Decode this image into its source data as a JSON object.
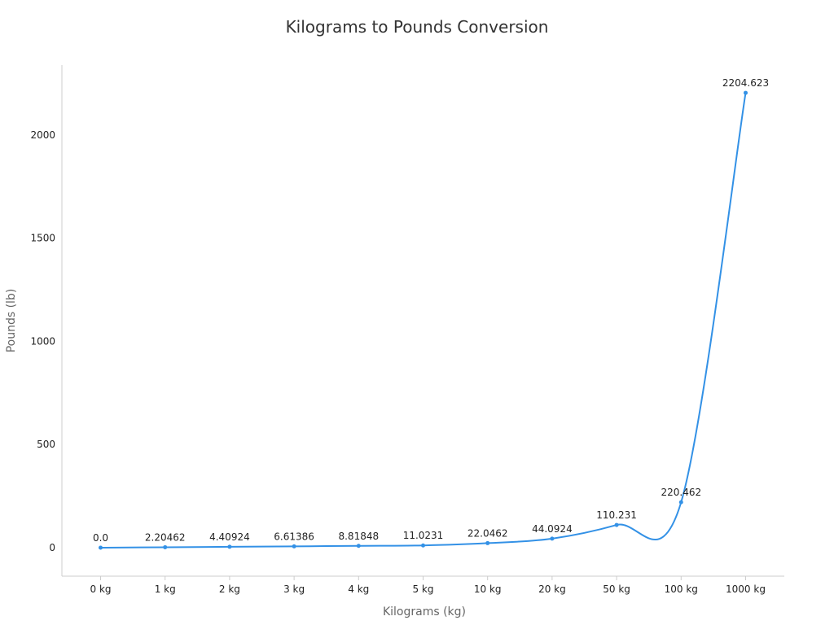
{
  "chart_data": {
    "type": "line",
    "title": "Kilograms to Pounds Conversion",
    "xlabel": "Kilograms (kg)",
    "ylabel": "Pounds (lb)",
    "categories": [
      "0 kg",
      "1 kg",
      "2 kg",
      "3 kg",
      "4 kg",
      "5 kg",
      "10 kg",
      "20 kg",
      "50 kg",
      "100 kg",
      "1000 kg"
    ],
    "values": [
      0,
      2.20462,
      4.40924,
      6.61386,
      8.81848,
      11.0231,
      22.0462,
      44.0924,
      110.231,
      220.462,
      2204.623
    ],
    "data_labels": [
      "0.0",
      "2.20462",
      "4.40924",
      "6.61386",
      "8.81848",
      "11.0231",
      "22.0462",
      "44.0924",
      "110.231",
      "220.462",
      "2204.623"
    ],
    "yticks": [
      0,
      500,
      1000,
      1500,
      2000
    ],
    "ytick_labels": [
      "0",
      "500",
      "1000",
      "1500",
      "2000"
    ],
    "ylim": [
      -138,
      2339
    ],
    "grid": false,
    "line_color": "#3391e6"
  }
}
